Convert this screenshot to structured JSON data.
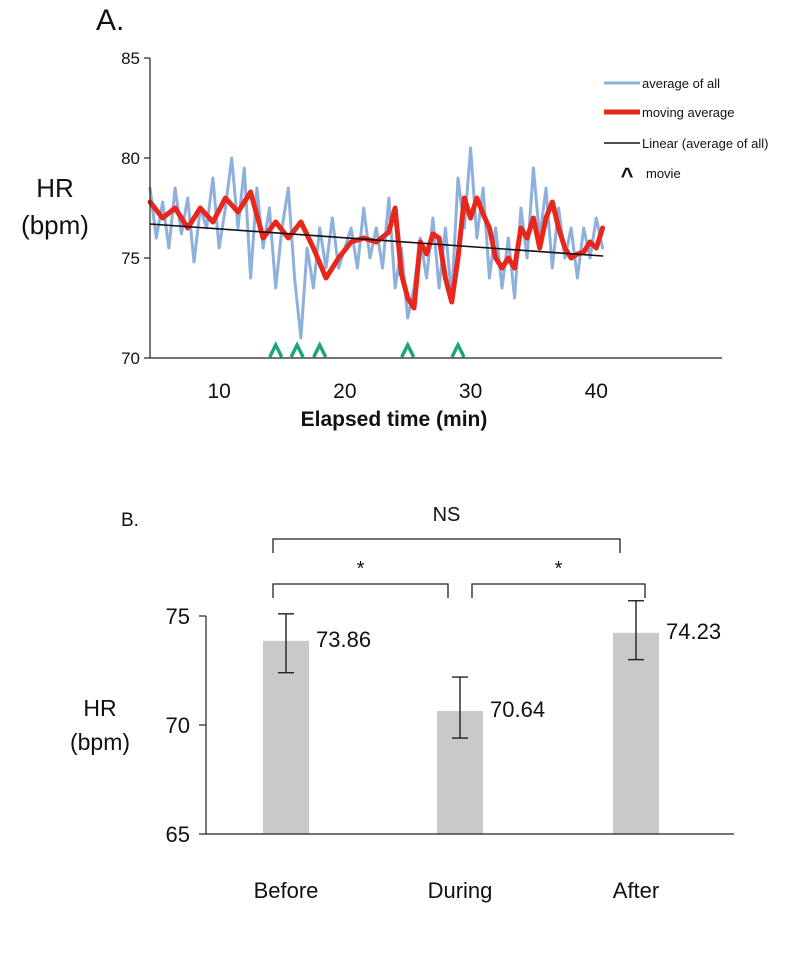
{
  "colors": {
    "average": "#8eb0dc",
    "moving": "#e8261b",
    "trend": "#111111",
    "movie": "#1fa37e",
    "bar": "#c9c9c9",
    "axis": "#222222"
  },
  "chart_data": [
    {
      "panel_label": "A.",
      "type": "line",
      "ylabel_line1": "HR",
      "ylabel_line2": "(bpm)",
      "xlabel": "Elapsed time (min)",
      "xlim": [
        4.5,
        50
      ],
      "ylim": [
        70,
        85
      ],
      "xticks": [
        "10",
        "20",
        "30",
        "40"
      ],
      "xtick_values": [
        10,
        20,
        30,
        40
      ],
      "yticks": [
        "70",
        "75",
        "80",
        "85"
      ],
      "ytick_values": [
        70,
        75,
        80,
        85
      ],
      "grid": false,
      "legend_position": "top-right",
      "legend": {
        "average": "average of all",
        "moving": "moving average",
        "trend": "Linear (average of all)",
        "movie": "movie"
      },
      "legend_movie_symbol": "^",
      "series": [
        {
          "name": "average of all",
          "x": [
            4.5,
            5,
            5.5,
            6,
            6.5,
            7,
            7.5,
            8,
            8.5,
            9,
            9.5,
            10,
            10.5,
            11,
            11.5,
            12,
            12.5,
            13,
            13.5,
            14,
            14.5,
            15,
            15.5,
            16,
            16.5,
            17,
            17.5,
            18,
            18.5,
            19,
            19.5,
            20,
            20.5,
            21,
            21.5,
            22,
            22.5,
            23,
            23.5,
            24,
            24.5,
            25,
            25.5,
            26,
            26.5,
            27,
            27.5,
            28,
            28.5,
            29,
            29.5,
            30,
            30.5,
            31,
            31.5,
            32,
            32.5,
            33,
            33.5,
            34,
            34.5,
            35,
            35.5,
            36,
            36.5,
            37,
            37.5,
            38,
            38.5,
            39,
            39.5,
            40,
            40.5
          ],
          "y": [
            78.5,
            76.0,
            77.8,
            75.5,
            78.5,
            76.2,
            78.0,
            74.8,
            77.5,
            76.5,
            79.0,
            75.5,
            77.5,
            80.0,
            76.5,
            79.5,
            74.0,
            78.5,
            75.5,
            77.5,
            73.5,
            76.5,
            78.5,
            74.0,
            71.0,
            75.5,
            73.5,
            76.5,
            74.5,
            77.0,
            74.5,
            75.5,
            76.5,
            74.5,
            77.5,
            75.0,
            76.5,
            74.5,
            78.0,
            73.5,
            75.5,
            72.0,
            73.5,
            76.0,
            74.0,
            77.0,
            73.5,
            76.5,
            73.0,
            79.0,
            76.5,
            80.5,
            76.0,
            78.5,
            74.0,
            76.5,
            73.5,
            76.0,
            73.0,
            77.5,
            75.0,
            79.5,
            76.0,
            78.5,
            74.5,
            77.5,
            75.0,
            76.5,
            74.0,
            76.5,
            75.0,
            77.0,
            75.5
          ]
        },
        {
          "name": "moving average",
          "x": [
            4.5,
            5.5,
            6.5,
            7.5,
            8.5,
            9.5,
            10.5,
            11.5,
            12.5,
            13.5,
            14.5,
            15.5,
            16.5,
            17.5,
            18.5,
            19.5,
            20.5,
            21.5,
            22.5,
            23.5,
            24,
            24.5,
            25,
            25.5,
            26,
            26.5,
            27,
            27.5,
            28,
            28.5,
            29,
            29.5,
            30,
            30.5,
            31,
            31.5,
            32,
            32.5,
            33,
            33.5,
            34,
            34.5,
            35,
            35.5,
            36,
            36.5,
            37,
            37.5,
            38,
            38.5,
            39,
            39.5,
            40,
            40.5
          ],
          "y": [
            77.8,
            77.0,
            77.5,
            76.5,
            77.5,
            76.8,
            78.0,
            77.3,
            78.3,
            76.0,
            76.8,
            76.0,
            76.8,
            75.5,
            74.0,
            75.0,
            75.8,
            76.0,
            75.8,
            76.3,
            77.5,
            74.2,
            73.0,
            72.5,
            75.8,
            75.2,
            76.2,
            76.0,
            74.0,
            72.8,
            75.0,
            78.0,
            77.0,
            78.0,
            77.2,
            76.5,
            75.0,
            74.5,
            75.0,
            74.5,
            76.5,
            76.0,
            77.0,
            75.5,
            77.0,
            77.8,
            76.5,
            75.5,
            75.0,
            75.2,
            75.3,
            75.8,
            75.5,
            76.5
          ]
        },
        {
          "name": "Linear (average of all)",
          "x": [
            4.5,
            40.5
          ],
          "y": [
            76.7,
            75.1
          ]
        }
      ],
      "movie_markers_x": [
        14.5,
        16.2,
        18.0,
        25.0,
        29.0
      ]
    },
    {
      "panel_label": "B.",
      "type": "bar",
      "ylabel_line1": "HR",
      "ylabel_line2": "(bpm)",
      "categories": [
        "Before",
        "During",
        "After"
      ],
      "values": [
        73.86,
        70.64,
        74.23
      ],
      "value_labels": [
        "73.86",
        "70.64",
        "74.23"
      ],
      "error_low": [
        72.4,
        69.4,
        73.0
      ],
      "error_high": [
        75.1,
        72.2,
        75.7
      ],
      "ylim": [
        65,
        75
      ],
      "yticks": [
        "65",
        "70",
        "75"
      ],
      "ytick_values": [
        65,
        70,
        75
      ],
      "grid": false,
      "significance": [
        {
          "from": 0,
          "to": 1,
          "label": "*"
        },
        {
          "from": 1,
          "to": 2,
          "label": "*"
        },
        {
          "from": 0,
          "to": 2,
          "label": "NS"
        }
      ]
    }
  ]
}
